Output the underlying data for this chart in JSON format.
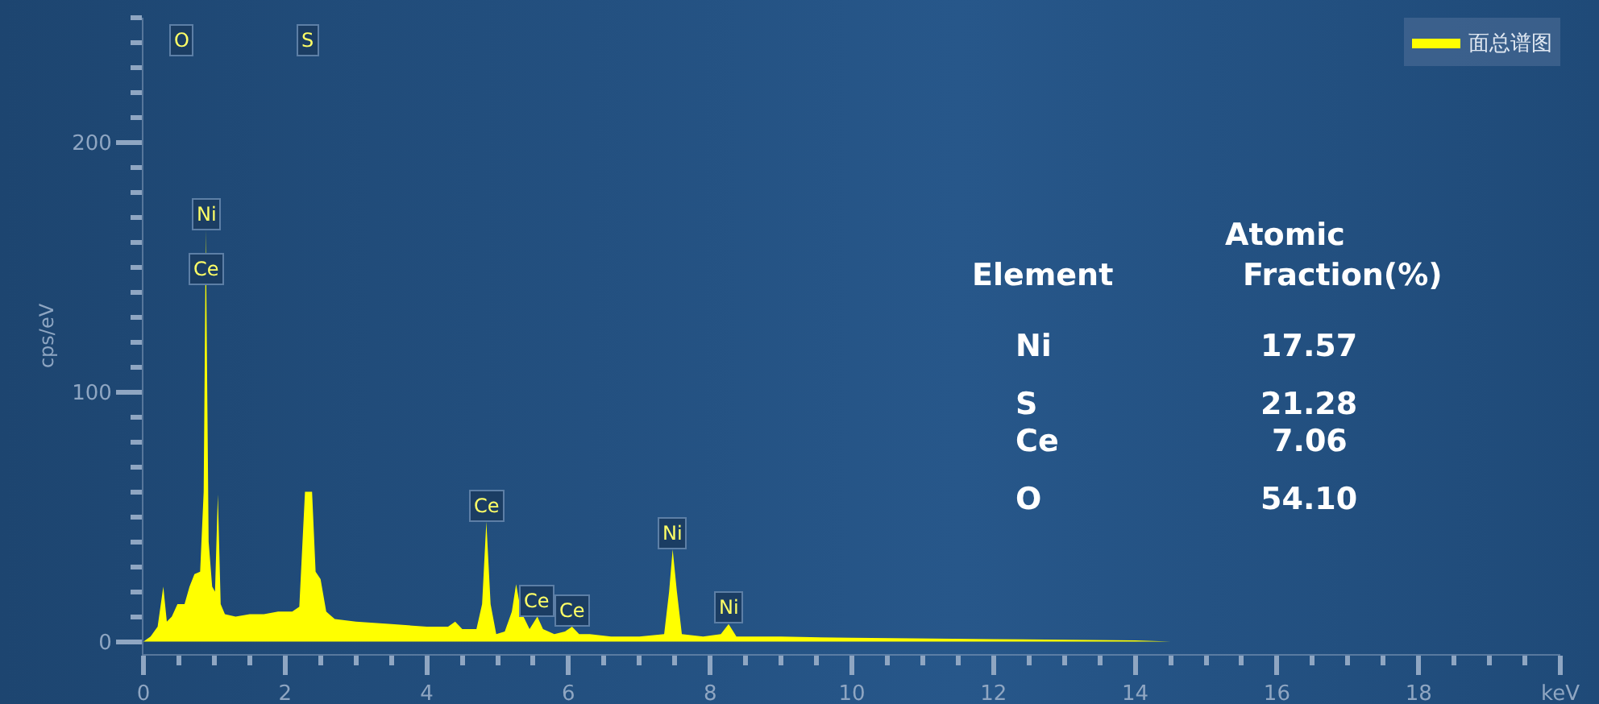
{
  "chart_data": {
    "type": "area",
    "ylabel": "cps/eV",
    "legend": "top right",
    "grid": false,
    "xlim": [
      0,
      20
    ],
    "xticks": [
      0,
      2,
      4,
      6,
      8,
      10,
      12,
      14,
      16,
      18,
      {
        "value": 20,
        "label": "keV"
      }
    ],
    "ylim": [
      -5,
      250
    ],
    "yticks": [
      0,
      100,
      200
    ],
    "series": [
      {
        "name": "面总谱图",
        "color": "#ffff00",
        "x": [
          0,
          0.1,
          0.2,
          0.28,
          0.33,
          0.4,
          0.48,
          0.53,
          0.58,
          0.65,
          0.72,
          0.8,
          0.85,
          0.88,
          0.92,
          0.97,
          1.01,
          1.05,
          1.09,
          1.15,
          1.3,
          1.5,
          1.7,
          1.9,
          2.1,
          2.2,
          2.28,
          2.33,
          2.38,
          2.43,
          2.5,
          2.58,
          2.7,
          3.0,
          3.5,
          4.0,
          4.3,
          4.4,
          4.5,
          4.7,
          4.78,
          4.84,
          4.9,
          4.98,
          5.1,
          5.2,
          5.26,
          5.33,
          5.45,
          5.56,
          5.64,
          5.8,
          5.95,
          6.05,
          6.15,
          6.3,
          6.6,
          7.0,
          7.35,
          7.42,
          7.47,
          7.53,
          7.6,
          7.9,
          8.15,
          8.26,
          8.37,
          9,
          10,
          12,
          14,
          14.5
        ],
        "values": [
          0,
          2,
          6,
          22,
          8,
          10,
          15,
          null,
          15,
          22,
          27,
          28,
          60,
          165,
          40,
          22,
          20,
          59,
          15,
          11,
          10,
          11,
          11,
          12,
          12,
          14,
          60,
          null,
          60,
          28,
          25,
          12,
          9,
          8,
          7,
          6,
          6,
          8,
          5,
          5,
          15,
          48,
          15,
          3,
          4,
          12,
          23,
          12,
          5,
          10,
          5,
          3,
          4,
          6,
          3,
          3,
          2,
          2,
          3,
          20,
          37,
          20,
          3,
          2,
          3,
          7,
          2,
          2,
          1.5,
          1,
          0.5,
          0
        ]
      }
    ],
    "annotations": [
      "O",
      "S",
      {
        "text": "Ni",
        "x": 0.88,
        "y": 165
      },
      {
        "text": "Ce",
        "x": 0.88,
        "y": 143
      },
      {
        "text": "Ce",
        "x": 4.84,
        "y": 48
      },
      {
        "text": "Ce",
        "x": 5.56,
        "y": 10
      },
      {
        "text": "Ce",
        "x": 6.05,
        "y": 6
      },
      {
        "text": "Ni",
        "x": 7.47,
        "y": 37
      },
      {
        "text": "Ni",
        "x": 8.26,
        "y": 7
      },
      "Atomic",
      "Element",
      "Fraction(%)",
      "Ni",
      "17.57",
      "S",
      "21.28",
      "Ce",
      "7.06",
      "O",
      "54.10"
    ]
  }
}
